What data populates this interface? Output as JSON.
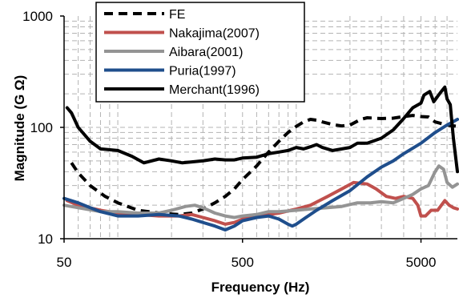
{
  "chart_data": {
    "type": "line",
    "xlabel": "Frequency (Hz)",
    "ylabel": "Magnitude (G Ω)",
    "x_scale": "log",
    "y_scale": "log",
    "xlim": [
      50,
      8000
    ],
    "ylim": [
      10,
      1000
    ],
    "x_ticks": [
      50,
      500,
      5000
    ],
    "x_tick_labels": [
      "50",
      "500",
      "5000"
    ],
    "y_ticks": [
      10,
      100,
      1000
    ],
    "y_tick_labels": [
      "10",
      "100",
      "1000"
    ],
    "grid": true,
    "legend": "top-left",
    "series": [
      {
        "name": "FE",
        "color": "#000000",
        "dash": true,
        "points": [
          [
            55,
            48
          ],
          [
            60,
            39
          ],
          [
            70,
            30
          ],
          [
            85,
            24
          ],
          [
            100,
            21
          ],
          [
            130,
            18
          ],
          [
            170,
            17
          ],
          [
            220,
            16.5
          ],
          [
            260,
            17
          ],
          [
            300,
            18.5
          ],
          [
            350,
            21
          ],
          [
            400,
            24
          ],
          [
            450,
            28
          ],
          [
            500,
            34
          ],
          [
            600,
            45
          ],
          [
            700,
            60
          ],
          [
            800,
            75
          ],
          [
            900,
            90
          ],
          [
            1000,
            102
          ],
          [
            1100,
            112
          ],
          [
            1200,
            118
          ],
          [
            1300,
            116
          ],
          [
            1400,
            112
          ],
          [
            1600,
            106
          ],
          [
            1800,
            103
          ],
          [
            2000,
            105
          ],
          [
            2300,
            118
          ],
          [
            2500,
            122
          ],
          [
            3000,
            120
          ],
          [
            3500,
            121
          ],
          [
            4000,
            125
          ],
          [
            4500,
            128
          ],
          [
            5000,
            125
          ],
          [
            5500,
            124
          ],
          [
            6000,
            112
          ],
          [
            7000,
            105
          ],
          [
            8000,
            102
          ]
        ]
      },
      {
        "name": "Nakajima(2007)",
        "color": "#c0504d",
        "dash": false,
        "points": [
          [
            52,
            22
          ],
          [
            60,
            20
          ],
          [
            80,
            18
          ],
          [
            100,
            17
          ],
          [
            130,
            16.5
          ],
          [
            170,
            16
          ],
          [
            220,
            16
          ],
          [
            260,
            16.5
          ],
          [
            300,
            15.5
          ],
          [
            350,
            14.5
          ],
          [
            400,
            13.5
          ],
          [
            450,
            14
          ],
          [
            500,
            15
          ],
          [
            600,
            16
          ],
          [
            700,
            16.5
          ],
          [
            800,
            17
          ],
          [
            1000,
            18.5
          ],
          [
            1200,
            20
          ],
          [
            1500,
            24
          ],
          [
            1800,
            28
          ],
          [
            2100,
            32
          ],
          [
            2500,
            31
          ],
          [
            2800,
            28
          ],
          [
            3200,
            24
          ],
          [
            3600,
            23
          ],
          [
            4000,
            24
          ],
          [
            4500,
            23
          ],
          [
            4800,
            20
          ],
          [
            5000,
            16
          ],
          [
            5300,
            16
          ],
          [
            5700,
            18
          ],
          [
            6200,
            18
          ],
          [
            6800,
            22
          ],
          [
            7200,
            20
          ],
          [
            7600,
            19
          ],
          [
            8000,
            18.5
          ]
        ]
      },
      {
        "name": "Aibara(2001)",
        "color": "#949494",
        "dash": false,
        "points": [
          [
            50,
            20
          ],
          [
            60,
            19
          ],
          [
            80,
            17.5
          ],
          [
            100,
            17.5
          ],
          [
            130,
            17
          ],
          [
            170,
            17
          ],
          [
            200,
            18
          ],
          [
            240,
            19.5
          ],
          [
            270,
            20
          ],
          [
            300,
            19
          ],
          [
            350,
            17
          ],
          [
            400,
            16
          ],
          [
            450,
            15.5
          ],
          [
            500,
            16
          ],
          [
            600,
            16.5
          ],
          [
            700,
            17.5
          ],
          [
            800,
            17.5
          ],
          [
            1000,
            18
          ],
          [
            1200,
            18.5
          ],
          [
            1500,
            19
          ],
          [
            1800,
            19.5
          ],
          [
            2200,
            21
          ],
          [
            2600,
            21
          ],
          [
            3000,
            21.5
          ],
          [
            3500,
            21
          ],
          [
            4000,
            23
          ],
          [
            4500,
            25
          ],
          [
            5000,
            28
          ],
          [
            5500,
            30
          ],
          [
            6000,
            40
          ],
          [
            6300,
            45
          ],
          [
            6700,
            42
          ],
          [
            7000,
            32
          ],
          [
            7500,
            29
          ],
          [
            8000,
            31
          ]
        ]
      },
      {
        "name": "Puria(1997)",
        "color": "#1f4e8c",
        "dash": false,
        "points": [
          [
            50,
            23
          ],
          [
            60,
            21
          ],
          [
            70,
            19
          ],
          [
            80,
            17.5
          ],
          [
            100,
            16
          ],
          [
            130,
            16
          ],
          [
            170,
            16.5
          ],
          [
            220,
            16
          ],
          [
            260,
            15
          ],
          [
            300,
            14
          ],
          [
            350,
            13
          ],
          [
            400,
            12
          ],
          [
            450,
            13
          ],
          [
            500,
            14.5
          ],
          [
            600,
            15.5
          ],
          [
            700,
            16
          ],
          [
            800,
            15
          ],
          [
            900,
            13.5
          ],
          [
            950,
            13
          ],
          [
            1000,
            13.5
          ],
          [
            1100,
            15
          ],
          [
            1300,
            18
          ],
          [
            1600,
            22
          ],
          [
            2000,
            27
          ],
          [
            2500,
            36
          ],
          [
            3000,
            44
          ],
          [
            3500,
            50
          ],
          [
            4000,
            58
          ],
          [
            5000,
            72
          ],
          [
            6000,
            90
          ],
          [
            7000,
            105
          ],
          [
            8000,
            118
          ]
        ]
      },
      {
        "name": "Merchant(1996)",
        "color": "#000000",
        "dash": false,
        "points": [
          [
            52,
            150
          ],
          [
            55,
            135
          ],
          [
            60,
            100
          ],
          [
            70,
            75
          ],
          [
            80,
            64
          ],
          [
            100,
            62
          ],
          [
            120,
            55
          ],
          [
            140,
            48
          ],
          [
            170,
            52
          ],
          [
            200,
            50
          ],
          [
            230,
            48
          ],
          [
            260,
            49
          ],
          [
            300,
            50
          ],
          [
            350,
            52
          ],
          [
            400,
            51
          ],
          [
            450,
            51
          ],
          [
            500,
            53
          ],
          [
            600,
            54
          ],
          [
            700,
            58
          ],
          [
            800,
            60
          ],
          [
            900,
            62
          ],
          [
            1000,
            66
          ],
          [
            1100,
            64
          ],
          [
            1200,
            67
          ],
          [
            1300,
            70
          ],
          [
            1400,
            66
          ],
          [
            1600,
            62
          ],
          [
            1800,
            64
          ],
          [
            2000,
            66
          ],
          [
            2200,
            72
          ],
          [
            2500,
            72
          ],
          [
            3000,
            80
          ],
          [
            3500,
            95
          ],
          [
            4000,
            120
          ],
          [
            4500,
            150
          ],
          [
            5000,
            165
          ],
          [
            5200,
            195
          ],
          [
            5600,
            210
          ],
          [
            5900,
            170
          ],
          [
            6200,
            190
          ],
          [
            6500,
            210
          ],
          [
            6800,
            230
          ],
          [
            7000,
            180
          ],
          [
            7300,
            160
          ],
          [
            7600,
            80
          ],
          [
            8000,
            40
          ]
        ]
      }
    ]
  }
}
